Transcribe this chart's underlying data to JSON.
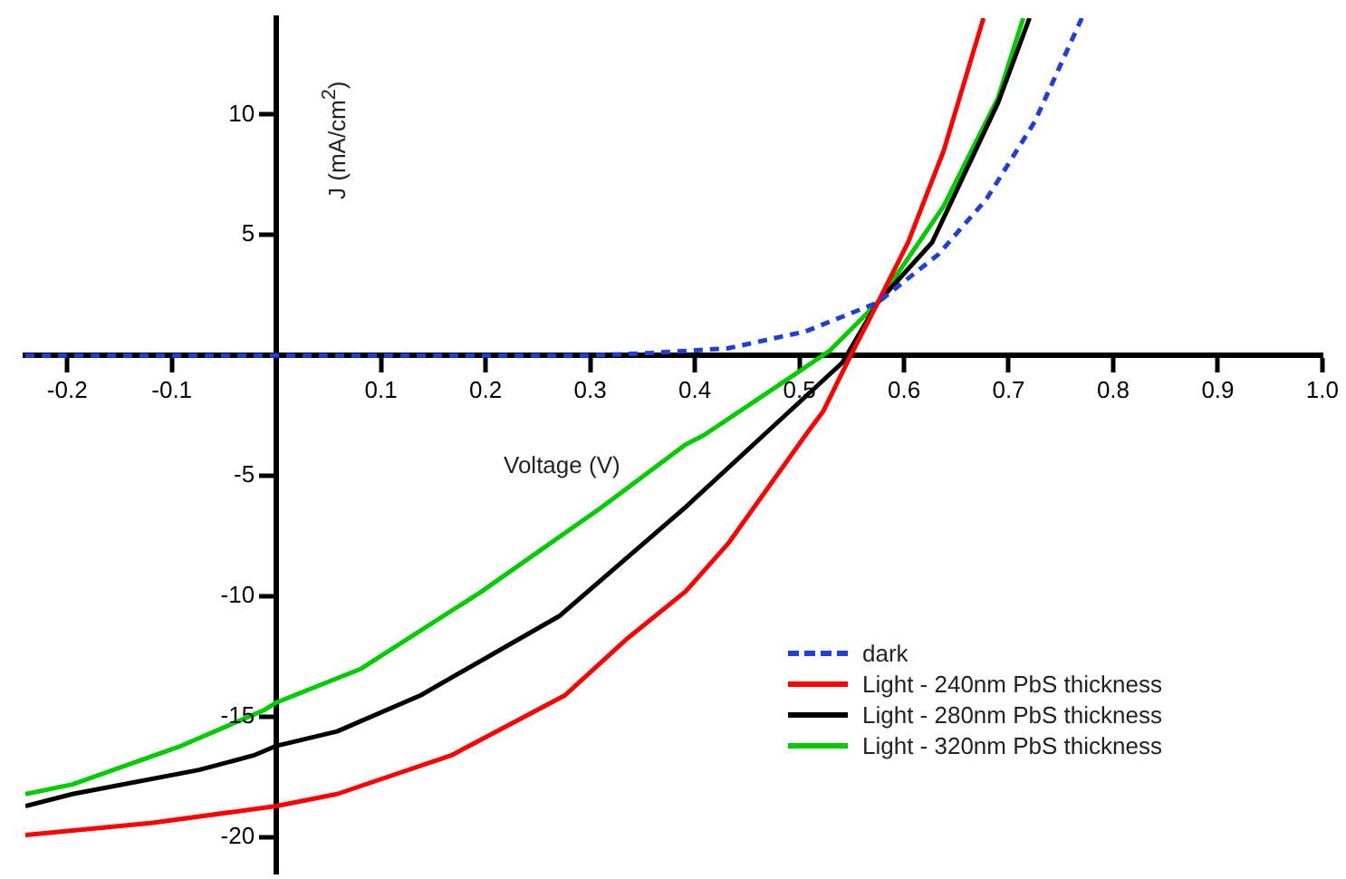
{
  "chart_data": {
    "type": "line",
    "xlabel": "Voltage (V)",
    "ylabel": "J (mA/cm$^{2}$)",
    "xlim": [
      -0.24,
      1.0
    ],
    "ylim": [
      -21.5,
      14
    ],
    "xticks": [
      -0.2,
      -0.1,
      0.1,
      0.2,
      0.3,
      0.4,
      0.5,
      0.6,
      0.7,
      0.8,
      0.9,
      "1.0"
    ],
    "yticks": [
      -20,
      -15,
      -10,
      -5,
      5,
      10
    ],
    "legend": "bottom right",
    "marker": "none",
    "grid": false,
    "series": [
      {
        "name": "dark",
        "color": "#1f3fd6",
        "line_style": "dashed",
        "x": [
          -0.24,
          0,
          0.2,
          0.3,
          0.357,
          0.432,
          0.506,
          0.575,
          0.633,
          0.679,
          0.725,
          0.77
        ],
        "values": [
          0,
          0,
          0,
          0,
          0.1,
          0.3,
          1.0,
          2.2,
          4.2,
          6.5,
          9.7,
          14
        ]
      },
      {
        "name": "Light - 240nm PbS thickness",
        "color": "#ff0000",
        "x": [
          -0.24,
          -0.12,
          0,
          0.058,
          0.167,
          0.276,
          0.334,
          0.391,
          0.432,
          0.506,
          0.523,
          0.549,
          0.575,
          0.604,
          0.638,
          0.676
        ],
        "values": [
          -19.9,
          -19.4,
          -18.7,
          -18.2,
          -16.6,
          -14.1,
          -11.8,
          -9.8,
          -7.8,
          -3.3,
          -2.3,
          0,
          2.2,
          4.7,
          8.5,
          14
        ]
      },
      {
        "name": "Light - 280nm PbS thickness",
        "color": "#000000",
        "x": [
          -0.24,
          -0.195,
          -0.074,
          -0.022,
          0,
          0.058,
          0.138,
          0.271,
          0.391,
          0.466,
          0.541,
          0.575,
          0.627,
          0.69,
          0.72
        ],
        "values": [
          -18.7,
          -18.2,
          -17.2,
          -16.6,
          -16.2,
          -15.6,
          -14.1,
          -10.8,
          -6.3,
          -3.3,
          -0.3,
          2.2,
          4.7,
          10.5,
          14
        ]
      },
      {
        "name": "Light - 320nm PbS thickness",
        "color": "#00cc00",
        "x": [
          -0.24,
          -0.195,
          -0.091,
          -0.011,
          0,
          0.081,
          0.196,
          0.311,
          0.391,
          0.409,
          0.495,
          0.529,
          0.575,
          0.638,
          0.69,
          0.714
        ],
        "values": [
          -18.2,
          -17.8,
          -16.2,
          -14.7,
          -14.4,
          -13,
          -9.8,
          -6.3,
          -3.7,
          -3.3,
          -0.8,
          0.2,
          2.2,
          6.2,
          10.7,
          14
        ]
      }
    ]
  }
}
